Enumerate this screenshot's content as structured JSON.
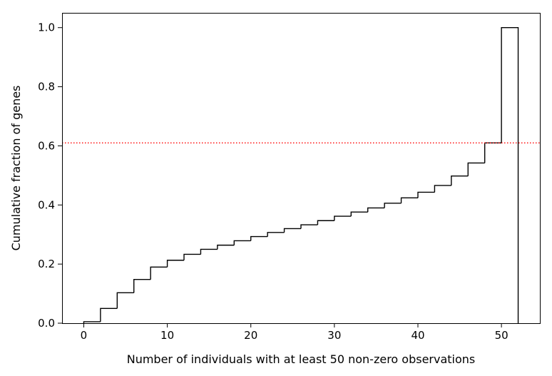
{
  "chart_data": {
    "type": "step",
    "histtype": "cumulative step histogram",
    "title": "",
    "xlabel": "Number of individuals with at least 50 non-zero observations",
    "ylabel": "Cumulative fraction of genes",
    "xlim": [
      -2.6,
      54.6
    ],
    "ylim": [
      0.0,
      1.05
    ],
    "xticks": [
      0,
      10,
      20,
      30,
      40,
      50
    ],
    "yticks": [
      0.0,
      0.2,
      0.4,
      0.6,
      0.8,
      1.0
    ],
    "xtick_labels": [
      "0",
      "10",
      "20",
      "30",
      "40",
      "50"
    ],
    "ytick_labels": [
      "0.0",
      "0.2",
      "0.4",
      "0.6",
      "0.8",
      "1.0"
    ],
    "bin_edges": [
      0,
      2,
      4,
      6,
      8,
      10,
      12,
      14,
      16,
      18,
      20,
      22,
      24,
      26,
      28,
      30,
      32,
      34,
      36,
      38,
      40,
      42,
      44,
      46,
      48,
      50,
      52
    ],
    "values": [
      0.005,
      0.05,
      0.103,
      0.148,
      0.19,
      0.213,
      0.233,
      0.25,
      0.264,
      0.279,
      0.293,
      0.307,
      0.32,
      0.333,
      0.347,
      0.362,
      0.376,
      0.39,
      0.406,
      0.424,
      0.443,
      0.466,
      0.498,
      0.542,
      0.61,
      1.0
    ],
    "reference_line": {
      "orientation": "horizontal",
      "y": 0.61,
      "style": "dotted",
      "color": "#ff0000"
    },
    "step_color": "#000000",
    "grid": false,
    "legend": "none"
  }
}
